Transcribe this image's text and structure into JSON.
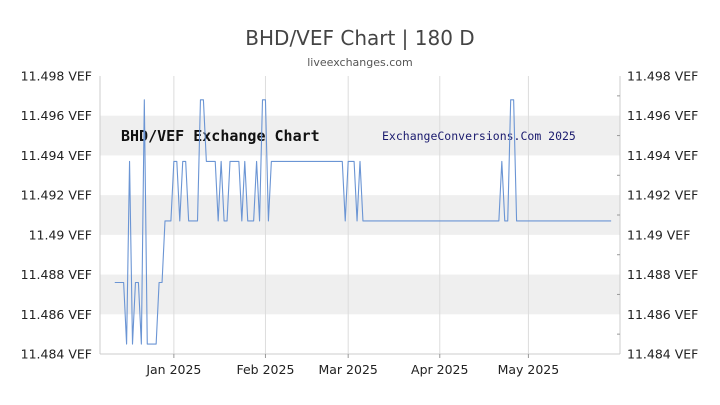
{
  "header": {
    "title": "BHD/VEF Chart | 180 D",
    "subtitle": "liveexchanges.com"
  },
  "chart_data": {
    "type": "line",
    "ylim": [
      11.484,
      11.498
    ],
    "y_ticks": [
      11.498,
      11.496,
      11.494,
      11.492,
      11.49,
      11.488,
      11.486,
      11.484
    ],
    "y_tick_labels": [
      "11.498 VEF",
      "11.496 VEF",
      "11.494 VEF",
      "11.492 VEF",
      "11.49 VEF",
      "11.488 VEF",
      "11.486 VEF",
      "11.484 VEF"
    ],
    "x_ticks": [
      {
        "label": "Jan 2025",
        "date": "2025-01-01"
      },
      {
        "label": "Feb 2025",
        "date": "2025-02-01"
      },
      {
        "label": "Mar 2025",
        "date": "2025-03-01"
      },
      {
        "label": "Apr 2025",
        "date": "2025-04-01"
      },
      {
        "label": "May 2025",
        "date": "2025-05-01"
      }
    ],
    "xlim": [
      "2024-12-07",
      "2025-06-01"
    ],
    "band_color": "#efefef",
    "line_color": "#6b95d4",
    "grid": true,
    "watermarks": {
      "left": "BHD/VEF Exchange Chart",
      "right": "ExchangeConversions.Com 2025"
    },
    "series": [
      {
        "x": [
          "2024-12-12",
          "2024-12-15",
          "2024-12-16",
          "2024-12-17",
          "2024-12-18",
          "2024-12-19",
          "2024-12-20",
          "2024-12-21",
          "2024-12-22",
          "2024-12-23",
          "2024-12-24",
          "2024-12-25",
          "2024-12-26",
          "2024-12-27",
          "2024-12-28",
          "2024-12-29",
          "2024-12-30",
          "2024-12-31",
          "2025-01-01",
          "2025-01-02",
          "2025-01-03",
          "2025-01-04",
          "2025-01-05",
          "2025-01-06",
          "2025-01-07",
          "2025-01-08",
          "2025-01-09",
          "2025-01-10",
          "2025-01-11",
          "2025-01-12",
          "2025-01-13",
          "2025-01-14",
          "2025-01-15",
          "2025-01-16",
          "2025-01-17",
          "2025-01-18",
          "2025-01-19",
          "2025-01-20",
          "2025-01-21",
          "2025-01-22",
          "2025-01-23",
          "2025-01-24",
          "2025-01-25",
          "2025-01-26",
          "2025-01-27",
          "2025-01-28",
          "2025-01-29",
          "2025-01-30",
          "2025-01-31",
          "2025-02-01",
          "2025-02-02",
          "2025-02-03",
          "2025-02-04",
          "2025-02-05",
          "2025-02-06",
          "2025-02-07",
          "2025-02-08",
          "2025-02-09",
          "2025-02-10",
          "2025-02-11",
          "2025-02-12",
          "2025-02-27",
          "2025-02-28",
          "2025-03-01",
          "2025-03-02",
          "2025-03-03",
          "2025-03-04",
          "2025-03-05",
          "2025-03-06",
          "2025-03-07",
          "2025-04-20",
          "2025-04-21",
          "2025-04-22",
          "2025-04-23",
          "2025-04-24",
          "2025-04-25",
          "2025-04-26",
          "2025-04-27",
          "2025-05-29"
        ],
        "y": [
          11.4876,
          11.4876,
          11.4845,
          11.4937,
          11.4845,
          11.4876,
          11.4876,
          11.4845,
          11.4968,
          11.4845,
          11.4845,
          11.4845,
          11.4845,
          11.4876,
          11.4876,
          11.4907,
          11.4907,
          11.4907,
          11.4937,
          11.4937,
          11.4907,
          11.4937,
          11.4937,
          11.4907,
          11.4907,
          11.4907,
          11.4907,
          11.4968,
          11.4968,
          11.4937,
          11.4937,
          11.4937,
          11.4937,
          11.4907,
          11.4937,
          11.4907,
          11.4907,
          11.4937,
          11.4937,
          11.4937,
          11.4937,
          11.4907,
          11.4937,
          11.4907,
          11.4907,
          11.4907,
          11.4937,
          11.4907,
          11.4968,
          11.4968,
          11.4907,
          11.4937,
          11.4937,
          11.4937,
          11.4937,
          11.4937,
          11.4937,
          11.4937,
          11.4937,
          11.4937,
          11.4937,
          11.4937,
          11.4907,
          11.4937,
          11.4937,
          11.4937,
          11.4907,
          11.4937,
          11.4907,
          11.4907,
          11.4907,
          11.4907,
          11.4937,
          11.4907,
          11.4907,
          11.4968,
          11.4968,
          11.4907,
          11.4907
        ]
      }
    ]
  }
}
